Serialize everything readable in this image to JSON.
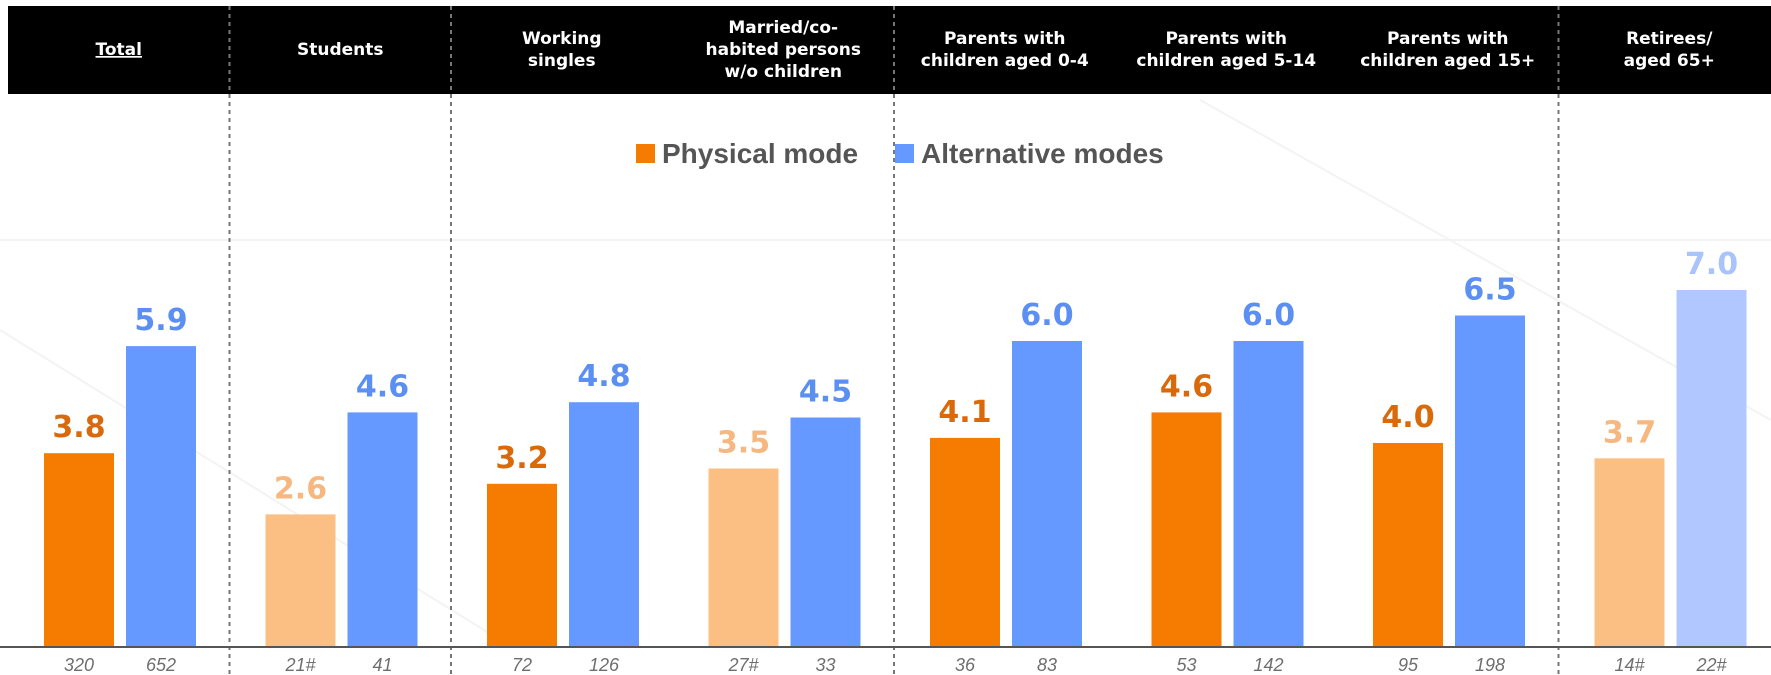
{
  "chart_data": {
    "type": "bar",
    "title": "",
    "xlabel": "",
    "ylabel": "",
    "ylim": [
      0,
      7.5
    ],
    "grid": false,
    "legend_position": "top-center",
    "categories": [
      "Total",
      "Students",
      "Working singles",
      "Married/co-habited persons w/o children",
      "Parents with children aged 0-4",
      "Parents with children aged 5-14",
      "Parents with children aged 15+",
      "Retirees/ aged 65+"
    ],
    "header_lines": [
      [
        "Total"
      ],
      [
        "Students"
      ],
      [
        "Working",
        "singles"
      ],
      [
        "Married/co-",
        "habited persons",
        "w/o children"
      ],
      [
        "Parents with",
        "children aged 0-4"
      ],
      [
        "Parents with",
        "children aged 5-14"
      ],
      [
        "Parents with",
        "children aged 15+"
      ],
      [
        "Retirees/",
        "aged 65+"
      ]
    ],
    "series": [
      {
        "name": "Physical mode",
        "color": "#f57c00",
        "light_color": "#fbbf84",
        "label_color": "#d9690a",
        "light_label_color": "#f6b880",
        "values": [
          3.8,
          2.6,
          3.2,
          3.5,
          4.1,
          4.6,
          4.0,
          3.7
        ],
        "labels": [
          "3.8",
          "2.6",
          "3.2",
          "3.5",
          "4.1",
          "4.6",
          "4.0",
          "3.7"
        ],
        "bases": [
          "320",
          "21#",
          "72",
          "27#",
          "36",
          "53",
          "95",
          "14#"
        ],
        "light": [
          false,
          true,
          false,
          true,
          false,
          false,
          false,
          true
        ]
      },
      {
        "name": "Alternative modes",
        "color": "#6699ff",
        "light_color": "#b0c8ff",
        "label_color": "#5c8ff2",
        "light_label_color": "#a9c3fb",
        "values": [
          5.9,
          4.6,
          4.8,
          4.5,
          6.0,
          6.0,
          6.5,
          7.0
        ],
        "labels": [
          "5.9",
          "4.6",
          "4.8",
          "4.5",
          "6.0",
          "6.0",
          "6.5",
          "7.0"
        ],
        "bases": [
          "652",
          "41",
          "126",
          "33",
          "83",
          "142",
          "198",
          "22#"
        ],
        "light": [
          false,
          false,
          false,
          false,
          false,
          false,
          false,
          true
        ]
      }
    ]
  }
}
